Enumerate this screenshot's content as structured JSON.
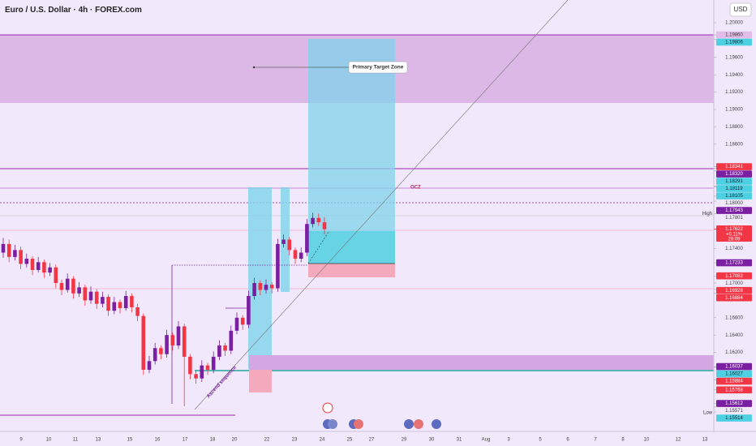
{
  "header": {
    "title": "Euro / U.S. Dollar · 4h · FOREX.com",
    "currency": "USD"
  },
  "annotations": {
    "target_zone": "Primary Target Zone",
    "ocz": "OCZ",
    "sequence": "Ascend sequence"
  },
  "price_axis": {
    "labels": [
      {
        "value": 1.2,
        "label": "1.20000",
        "style": "plain"
      },
      {
        "value": 1.1986,
        "label": "1.19860",
        "style": "lilac"
      },
      {
        "value": 1.19806,
        "label": "1.19806",
        "style": "teal"
      },
      {
        "value": 1.196,
        "label": "1.19600",
        "style": "plain"
      },
      {
        "value": 1.194,
        "label": "1.19400",
        "style": "plain"
      },
      {
        "value": 1.192,
        "label": "1.19200",
        "style": "plain"
      },
      {
        "value": 1.19,
        "label": "1.19000",
        "style": "plain"
      },
      {
        "value": 1.188,
        "label": "1.18800",
        "style": "plain"
      },
      {
        "value": 1.186,
        "label": "1.18600",
        "style": "plain"
      },
      {
        "value": 1.18341,
        "label": "1.18341",
        "style": "red"
      },
      {
        "value": 1.1832,
        "label": "1.18320",
        "style": "purple"
      },
      {
        "value": 1.18291,
        "label": "1.18291",
        "style": "teal"
      },
      {
        "value": 1.18119,
        "label": "1.18119",
        "style": "teal"
      },
      {
        "value": 1.18105,
        "label": "1.18105",
        "style": "teal"
      },
      {
        "value": 1.18,
        "label": "1.18000",
        "style": "plain"
      },
      {
        "value": 1.17943,
        "label": "1.17943",
        "style": "purple"
      },
      {
        "value": 1.17801,
        "label": "1.17801",
        "style": "plain"
      },
      {
        "value": 1.174,
        "label": "1.17400",
        "style": "plain"
      },
      {
        "value": 1.17233,
        "label": "1.17233",
        "style": "purple"
      },
      {
        "value": 1.17082,
        "label": "1.17082",
        "style": "red"
      },
      {
        "value": 1.17,
        "label": "1.17000",
        "style": "plain"
      },
      {
        "value": 1.16926,
        "label": "1.16926",
        "style": "red"
      },
      {
        "value": 1.16884,
        "label": "1.16884",
        "style": "red"
      },
      {
        "value": 1.166,
        "label": "1.16600",
        "style": "plain"
      },
      {
        "value": 1.164,
        "label": "1.16400",
        "style": "plain"
      },
      {
        "value": 1.162,
        "label": "1.16200",
        "style": "plain"
      },
      {
        "value": 1.16037,
        "label": "1.16037",
        "style": "purple"
      },
      {
        "value": 1.16027,
        "label": "1.16027",
        "style": "teal"
      },
      {
        "value": 1.15884,
        "label": "1.15884",
        "style": "red"
      },
      {
        "value": 1.15768,
        "label": "1.15768",
        "style": "red"
      },
      {
        "value": 1.15612,
        "label": "1.15612",
        "style": "purple"
      },
      {
        "value": 1.15571,
        "label": "1.15571",
        "style": "plain"
      },
      {
        "value": 1.15514,
        "label": "1.15514",
        "style": "teal"
      }
    ],
    "current": {
      "value": 1.17622,
      "label": "1.17622",
      "change": "+0.11%",
      "countdown": "28:09"
    },
    "high_label": "High",
    "low_label": "Low"
  },
  "time_axis": [
    "9",
    "10",
    "11",
    "13",
    "15",
    "16",
    "17",
    "18",
    "20",
    "22",
    "23",
    "24",
    "25",
    "27",
    "29",
    "30",
    "31",
    "Aug",
    "3",
    "5",
    "6",
    "7",
    "8",
    "10",
    "12",
    "13"
  ],
  "colors": {
    "up": "#7b1fa2",
    "down": "#f23645"
  },
  "candles": [
    [
      1.1735,
      1.1752,
      1.1729,
      1.1745
    ],
    [
      1.1745,
      1.175,
      1.1724,
      1.173
    ],
    [
      1.173,
      1.1744,
      1.1726,
      1.1738
    ],
    [
      1.1738,
      1.1742,
      1.1716,
      1.1722
    ],
    [
      1.1722,
      1.1734,
      1.1718,
      1.1728
    ],
    [
      1.1728,
      1.1731,
      1.1709,
      1.1715
    ],
    [
      1.1715,
      1.173,
      1.1712,
      1.1724
    ],
    [
      1.1724,
      1.1727,
      1.1706,
      1.1712
    ],
    [
      1.1712,
      1.1723,
      1.1708,
      1.1718
    ],
    [
      1.1718,
      1.1721,
      1.1694,
      1.17
    ],
    [
      1.17,
      1.1704,
      1.1686,
      1.1692
    ],
    [
      1.1692,
      1.1711,
      1.1689,
      1.1705
    ],
    [
      1.1705,
      1.1708,
      1.1682,
      1.1688
    ],
    [
      1.1688,
      1.1701,
      1.1684,
      1.1695
    ],
    [
      1.1695,
      1.1698,
      1.1674,
      1.168
    ],
    [
      1.168,
      1.1696,
      1.1676,
      1.169
    ],
    [
      1.169,
      1.1693,
      1.167,
      1.1676
    ],
    [
      1.1676,
      1.169,
      1.1672,
      1.1684
    ],
    [
      1.1684,
      1.1687,
      1.1662,
      1.1668
    ],
    [
      1.1668,
      1.1684,
      1.1664,
      1.1678
    ],
    [
      1.1678,
      1.1681,
      1.1665,
      1.1671
    ],
    [
      1.1671,
      1.1691,
      1.1668,
      1.1685
    ],
    [
      1.1685,
      1.1688,
      1.1666,
      1.1672
    ],
    [
      1.1672,
      1.1676,
      1.1656,
      1.1662
    ],
    [
      1.1662,
      1.1665,
      1.1594,
      1.16
    ],
    [
      1.16,
      1.1616,
      1.1596,
      1.161
    ],
    [
      1.161,
      1.1631,
      1.1606,
      1.1625
    ],
    [
      1.1625,
      1.1628,
      1.1612,
      1.1618
    ],
    [
      1.1618,
      1.1646,
      1.1614,
      1.164
    ],
    [
      1.164,
      1.1643,
      1.1622,
      1.1628
    ],
    [
      1.1628,
      1.1656,
      1.1624,
      1.165
    ],
    [
      1.165,
      1.1653,
      1.1558,
      1.1615
    ],
    [
      1.1615,
      1.1618,
      1.1589,
      1.1595
    ],
    [
      1.1595,
      1.1599,
      1.1584,
      1.159
    ],
    [
      1.159,
      1.1611,
      1.1586,
      1.1605
    ],
    [
      1.1605,
      1.1608,
      1.1594,
      1.16
    ],
    [
      1.16,
      1.1621,
      1.1596,
      1.1615
    ],
    [
      1.1615,
      1.1634,
      1.1611,
      1.1628
    ],
    [
      1.1628,
      1.1631,
      1.1616,
      1.1622
    ],
    [
      1.1622,
      1.1651,
      1.1618,
      1.1645
    ],
    [
      1.1645,
      1.1666,
      1.1641,
      1.166
    ],
    [
      1.166,
      1.1663,
      1.1646,
      1.1652
    ],
    [
      1.1652,
      1.1691,
      1.1648,
      1.1685
    ],
    [
      1.1685,
      1.1706,
      1.1681,
      1.17
    ],
    [
      1.17,
      1.1703,
      1.1686,
      1.1692
    ],
    [
      1.1692,
      1.1704,
      1.1688,
      1.1698
    ],
    [
      1.1698,
      1.1701,
      1.1688,
      1.1694
    ],
    [
      1.1694,
      1.1751,
      1.169,
      1.1745
    ],
    [
      1.1745,
      1.1756,
      1.1741,
      1.175
    ],
    [
      1.175,
      1.1753,
      1.1732,
      1.1738
    ],
    [
      1.1738,
      1.1741,
      1.1722,
      1.1728
    ],
    [
      1.1728,
      1.1741,
      1.1724,
      1.1735
    ],
    [
      1.1735,
      1.1774,
      1.1731,
      1.1768
    ],
    [
      1.1768,
      1.1781,
      1.1764,
      1.1775
    ],
    [
      1.1775,
      1.178,
      1.1766,
      1.177
    ],
    [
      1.177,
      1.1776,
      1.1756,
      1.1762
    ]
  ]
}
